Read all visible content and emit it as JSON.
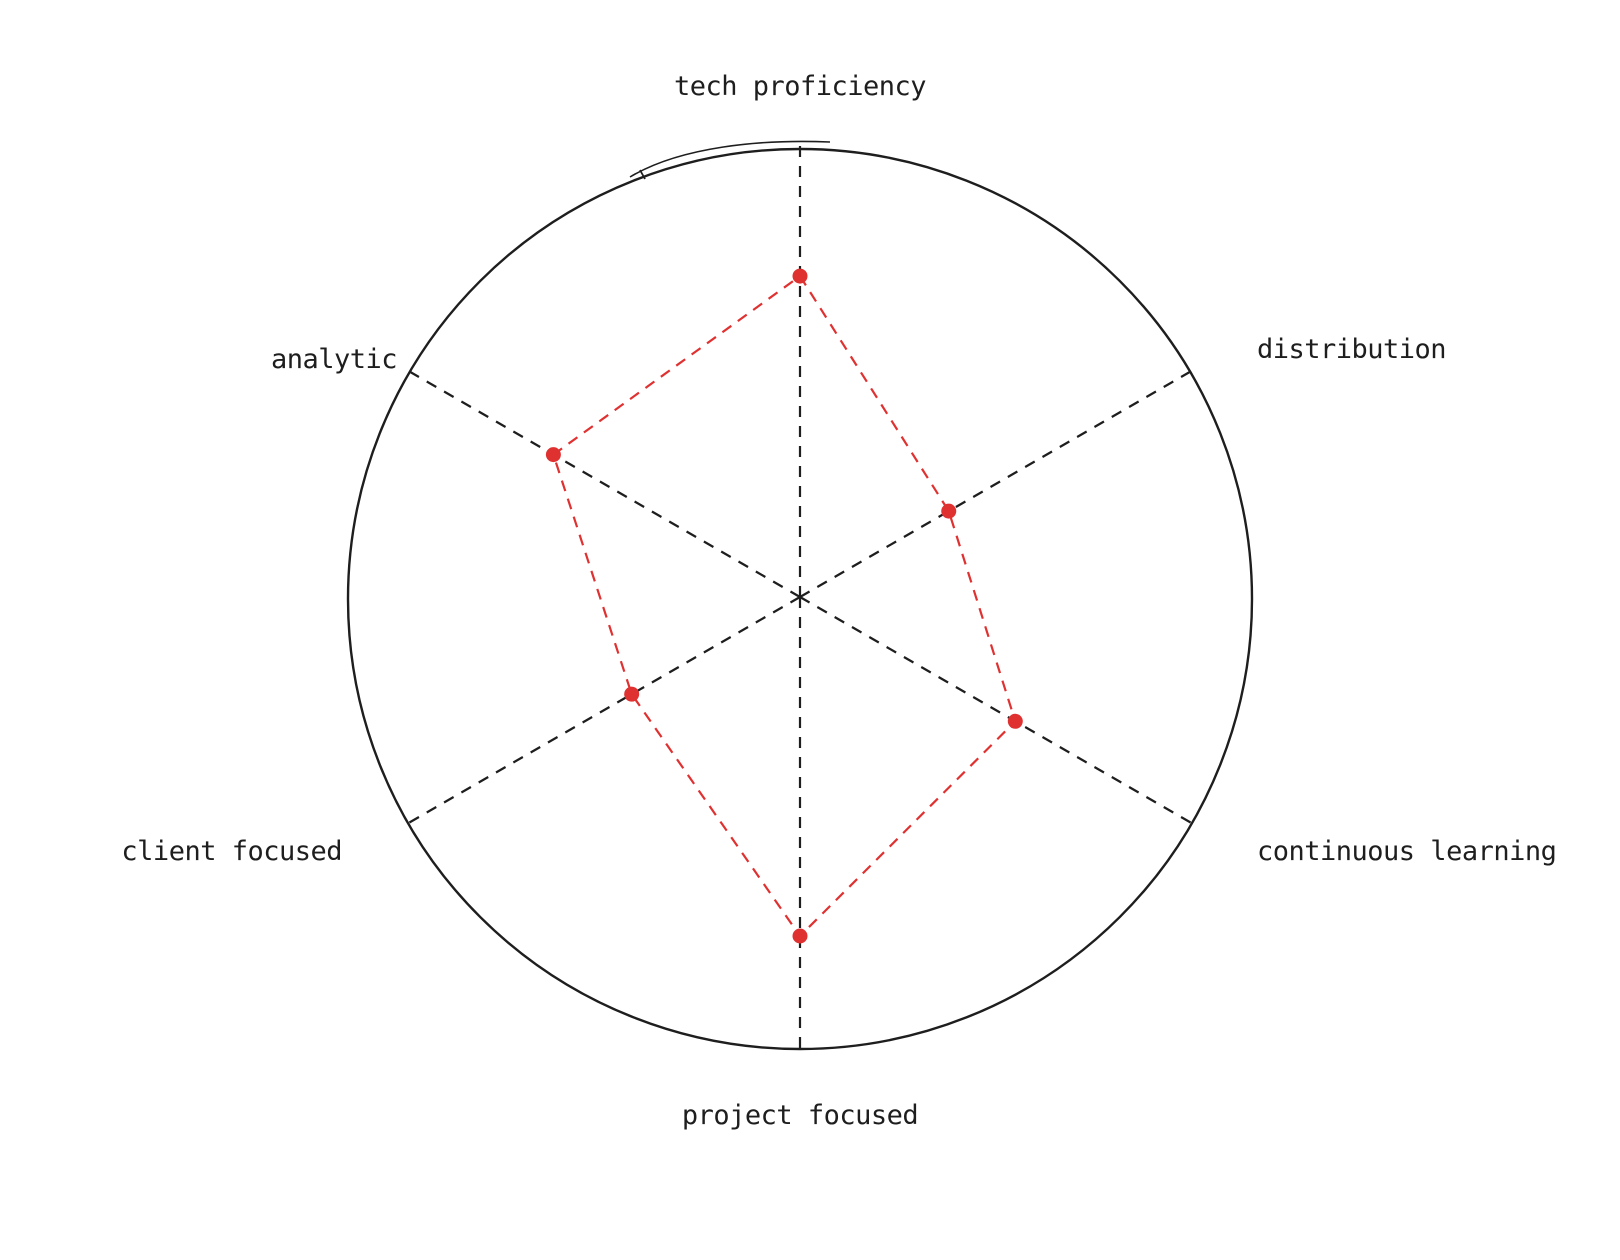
{
  "chart_data": {
    "type": "radar",
    "title": "",
    "axes": [
      "tech proficiency",
      "distribution",
      "continuous learning",
      "project focused",
      "client focused",
      "analytic"
    ],
    "series": [
      {
        "values": [
          0.71,
          0.38,
          0.55,
          0.75,
          0.43,
          0.63
        ]
      }
    ],
    "range": [
      0,
      1
    ],
    "grid": false,
    "colors": {
      "outline": "#1e1e1e",
      "axis": "#1e1e1e",
      "series": "#e03131",
      "background": "#ffffff"
    }
  }
}
